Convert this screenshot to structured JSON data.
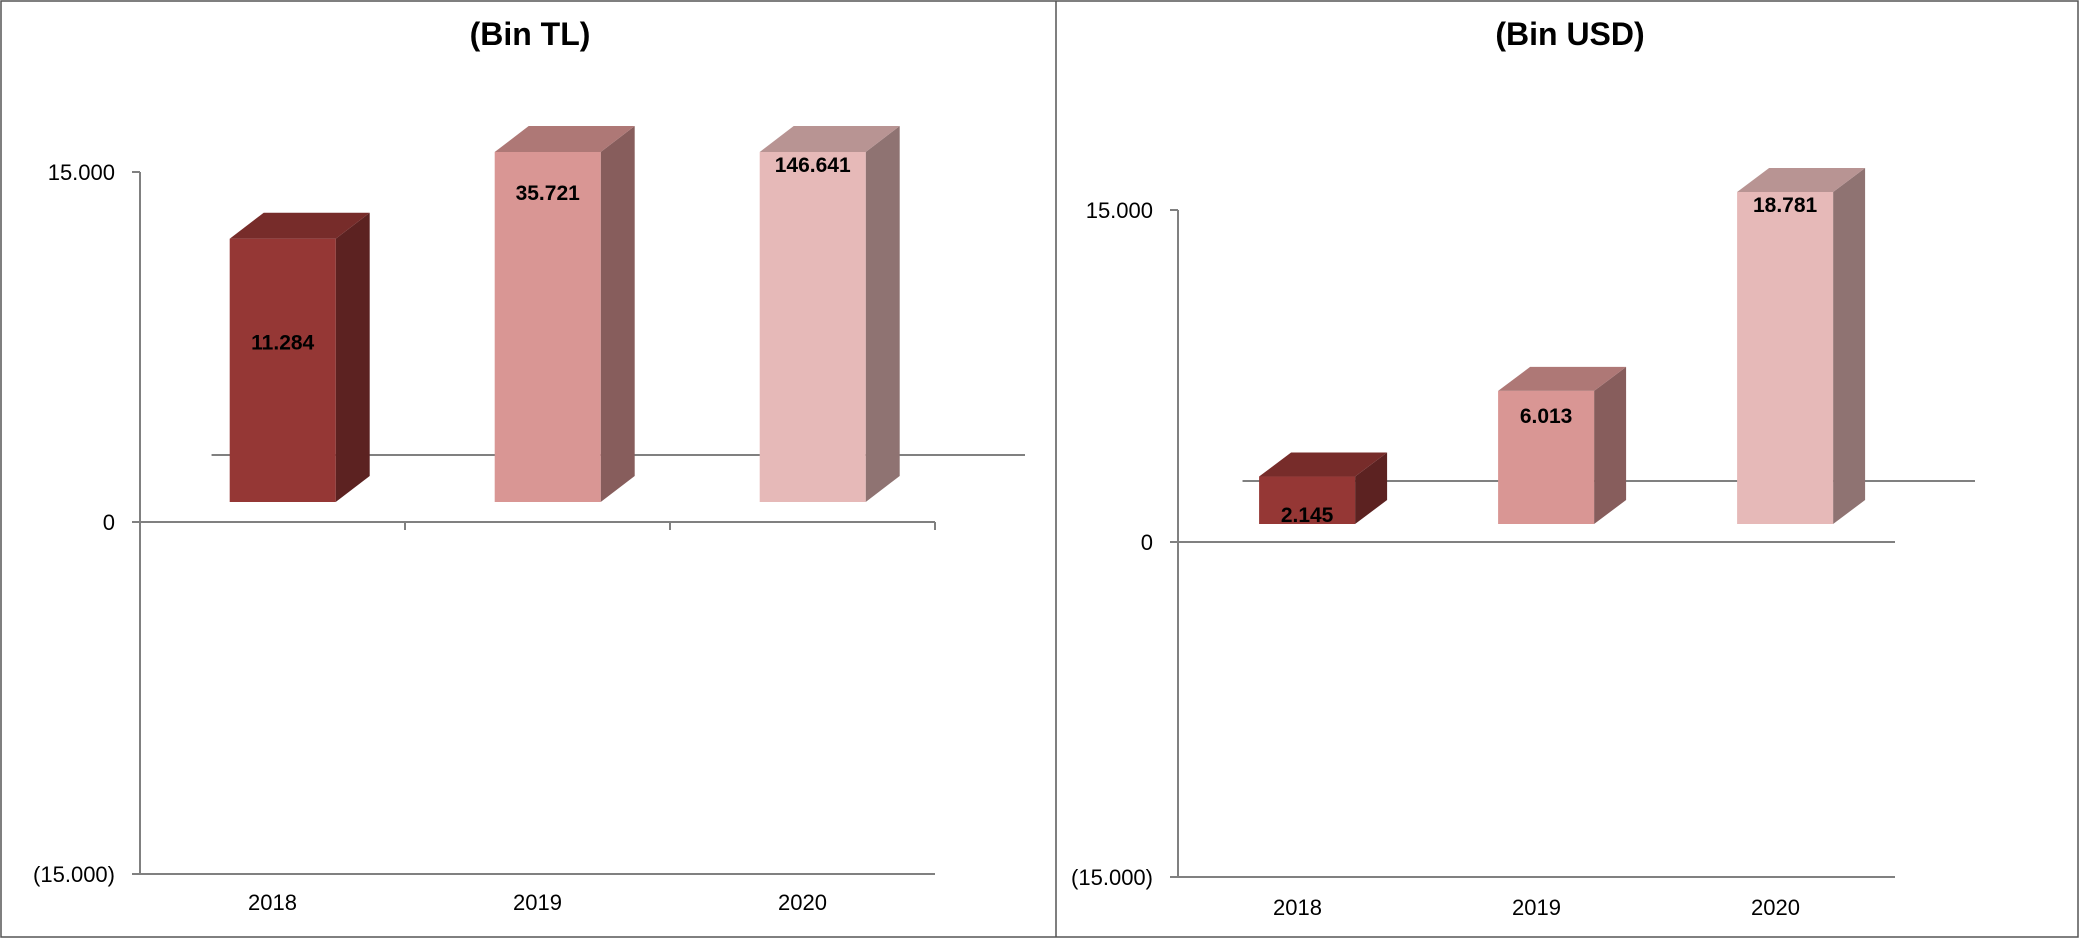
{
  "colors": {
    "bar_2018": "#953735",
    "bar_2019": "#d99694",
    "bar_2020": "#e6b9b8",
    "axis": "#808080",
    "border": "#555555"
  },
  "chart_data": [
    {
      "type": "bar",
      "title": "(Bin TL)",
      "categories": [
        "2018",
        "2019",
        "2020"
      ],
      "values": [
        11284,
        35721,
        146641
      ],
      "value_labels": [
        "11.284",
        "35.721",
        "146.641"
      ],
      "ylim": [
        -15000,
        15000
      ],
      "yticks": [
        {
          "value": 15000,
          "label": "15.000"
        },
        {
          "value": 0,
          "label": "0"
        },
        {
          "value": -15000,
          "label": "(15.000)"
        }
      ],
      "grid": false,
      "legend": "none",
      "style": "3d-column"
    },
    {
      "type": "bar",
      "title": "(Bin USD)",
      "categories": [
        "2018",
        "2019",
        "2020"
      ],
      "values": [
        2145,
        6013,
        18781
      ],
      "value_labels": [
        "2.145",
        "6.013",
        "18.781"
      ],
      "ylim": [
        -15000,
        15000
      ],
      "yticks": [
        {
          "value": 15000,
          "label": "15.000"
        },
        {
          "value": 0,
          "label": "0"
        },
        {
          "value": -15000,
          "label": "(15.000)"
        }
      ],
      "grid": false,
      "legend": "none",
      "style": "3d-column"
    }
  ]
}
